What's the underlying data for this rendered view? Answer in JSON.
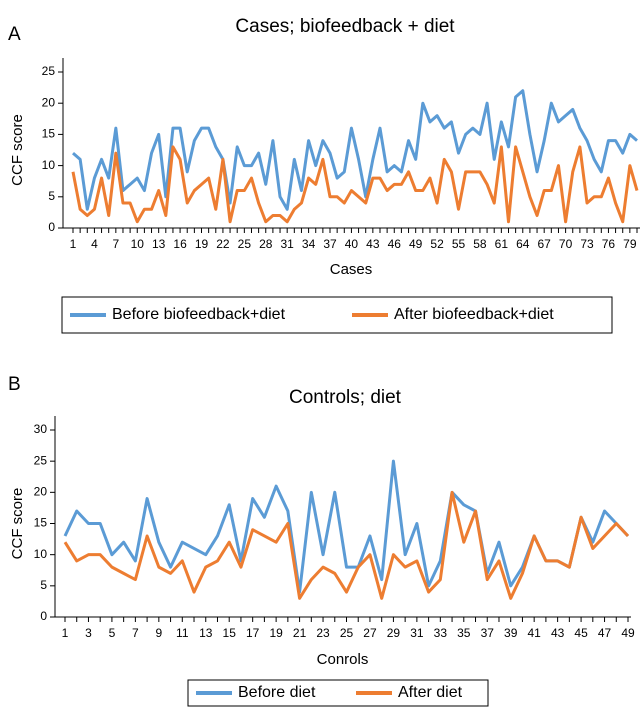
{
  "chart_data": [
    {
      "type": "line",
      "panel": "A",
      "title": "Cases; biofeedback + diet",
      "xlabel": "Cases",
      "ylabel": "CCF score",
      "categories": [
        1,
        null,
        null,
        4,
        null,
        null,
        7,
        null,
        null,
        10,
        null,
        null,
        13,
        null,
        null,
        16,
        null,
        null,
        19,
        null,
        null,
        22,
        null,
        null,
        25,
        null,
        null,
        28,
        null,
        null,
        31,
        null,
        null,
        34,
        null,
        null,
        37,
        null,
        null,
        40,
        null,
        null,
        43,
        null,
        null,
        46,
        null,
        null,
        49,
        null,
        null,
        52,
        null,
        null,
        55,
        null,
        null,
        58,
        null,
        null,
        61,
        null,
        null,
        64,
        null,
        null,
        67,
        null,
        null,
        70,
        null,
        null,
        73,
        null,
        null,
        76,
        null,
        null,
        79,
        null
      ],
      "series": [
        {
          "name": "Before biofeedback+diet",
          "color": "#5b9bd5",
          "values": [
            12,
            11,
            3,
            8,
            11,
            8,
            16,
            6,
            7,
            8,
            6,
            12,
            15,
            5,
            16,
            16,
            9,
            14,
            16,
            16,
            13,
            11,
            4,
            13,
            10,
            10,
            12,
            7,
            14,
            5,
            3,
            11,
            6,
            14,
            10,
            14,
            12,
            8,
            9,
            16,
            11,
            5,
            11,
            16,
            9,
            10,
            9,
            14,
            11,
            20,
            17,
            18,
            16,
            17,
            12,
            15,
            16,
            15,
            20,
            11,
            17,
            13,
            21,
            22,
            15,
            9,
            14,
            20,
            17,
            18,
            19,
            16,
            14,
            11,
            9,
            14,
            14,
            12,
            15,
            14
          ]
        },
        {
          "name": "After biofeedback+diet",
          "color": "#ed7d31",
          "values": [
            9,
            3,
            2,
            3,
            8,
            2,
            12,
            4,
            4,
            1,
            3,
            3,
            6,
            2,
            13,
            11,
            4,
            6,
            7,
            8,
            3,
            11,
            1,
            6,
            6,
            8,
            4,
            1,
            2,
            2,
            1,
            3,
            4,
            8,
            7,
            11,
            5,
            5,
            4,
            6,
            5,
            4,
            8,
            8,
            6,
            7,
            7,
            9,
            6,
            6,
            8,
            4,
            11,
            9,
            3,
            9,
            9,
            9,
            7,
            4,
            13,
            1,
            13,
            9,
            5,
            2,
            6,
            6,
            10,
            1,
            9,
            13,
            4,
            5,
            5,
            8,
            4,
            1,
            10,
            6
          ]
        }
      ],
      "ylim": [
        0,
        25
      ],
      "yticks": [
        0,
        5,
        10,
        15,
        20,
        25
      ],
      "legend": "bottom"
    },
    {
      "type": "line",
      "panel": "B",
      "title": "Controls; diet",
      "xlabel": "Conrols",
      "ylabel": "CCF score",
      "categories": [
        1,
        null,
        3,
        null,
        5,
        null,
        7,
        null,
        9,
        null,
        11,
        null,
        13,
        null,
        15,
        null,
        17,
        null,
        19,
        null,
        21,
        null,
        23,
        null,
        25,
        null,
        27,
        null,
        29,
        null,
        31,
        null,
        33,
        null,
        35,
        null,
        37,
        null,
        39,
        null,
        41,
        null,
        43,
        null,
        45,
        null,
        47,
        null,
        49
      ],
      "series": [
        {
          "name": "Before diet",
          "color": "#5b9bd5",
          "values": [
            13,
            17,
            15,
            15,
            10,
            12,
            9,
            19,
            12,
            8,
            12,
            11,
            10,
            13,
            18,
            9,
            19,
            16,
            21,
            17,
            4,
            20,
            10,
            20,
            8,
            8,
            13,
            6,
            25,
            10,
            15,
            5,
            9,
            20,
            18,
            17,
            7,
            12,
            5,
            8,
            13,
            9,
            9,
            8,
            16,
            12,
            17,
            15,
            13
          ]
        },
        {
          "name": "After diet",
          "color": "#ed7d31",
          "values": [
            12,
            9,
            10,
            10,
            8,
            7,
            6,
            13,
            8,
            7,
            9,
            4,
            8,
            9,
            12,
            8,
            14,
            13,
            12,
            15,
            3,
            6,
            8,
            7,
            4,
            8,
            10,
            3,
            10,
            8,
            9,
            4,
            6,
            20,
            12,
            17,
            6,
            9,
            3,
            7,
            13,
            9,
            9,
            8,
            16,
            11,
            13,
            15,
            13
          ]
        }
      ],
      "ylim": [
        0,
        30
      ],
      "yticks": [
        0,
        5,
        10,
        15,
        20,
        25,
        30
      ],
      "legend": "bottom"
    }
  ]
}
